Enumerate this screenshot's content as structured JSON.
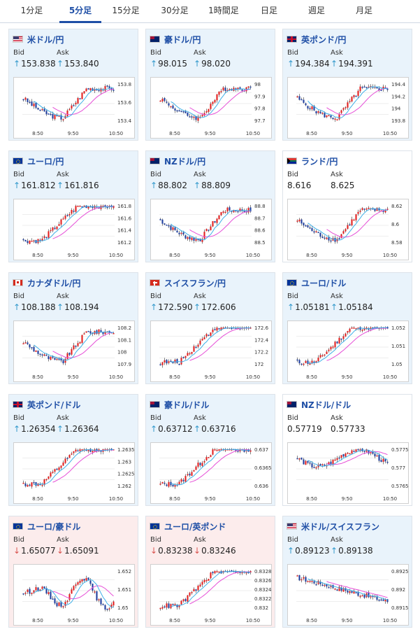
{
  "tabs": [
    "1分足",
    "5分足",
    "15分足",
    "30分足",
    "1時間足",
    "日足",
    "週足",
    "月足"
  ],
  "active_tab": 1,
  "labels": {
    "bid": "Bid",
    "ask": "Ask"
  },
  "colors": {
    "up_bg": "#e9f3fb",
    "down_bg": "#fcecec",
    "title": "#1f4fa6",
    "up_candle": "#e32020",
    "down_candle": "#1f3fa0",
    "ma_long": "#e64fd7",
    "ma_short": "#3fb0e8"
  },
  "time_labels": [
    "8:50",
    "9:50",
    "10:50"
  ],
  "cards": [
    {
      "pair": "米ドル/円",
      "flag": "us-jp",
      "direction": "up",
      "bid": "153.838",
      "ask": "153.840",
      "yticks": [
        "153.8",
        "153.6",
        "153.4"
      ],
      "trend": "upshape"
    },
    {
      "pair": "豪ドル/円",
      "flag": "au-jp",
      "direction": "up",
      "bid": "98.015",
      "ask": "98.020",
      "yticks": [
        "98",
        "97.9",
        "97.8",
        "97.7"
      ],
      "trend": "upshape"
    },
    {
      "pair": "英ポンド/円",
      "flag": "gb-jp",
      "direction": "up",
      "bid": "194.384",
      "ask": "194.391",
      "yticks": [
        "194.4",
        "194.2",
        "194",
        "193.8"
      ],
      "trend": "upshape"
    },
    {
      "pair": "ユーロ/円",
      "flag": "eu-jp",
      "direction": "up",
      "bid": "161.812",
      "ask": "161.816",
      "yticks": [
        "161.8",
        "161.6",
        "161.4",
        "161.2"
      ],
      "trend": "rise"
    },
    {
      "pair": "NZドル/円",
      "flag": "nz-jp",
      "direction": "up",
      "bid": "88.802",
      "ask": "88.809",
      "yticks": [
        "88.8",
        "88.7",
        "88.6",
        "88.5"
      ],
      "trend": "upshape"
    },
    {
      "pair": "ランド/円",
      "flag": "za-jp",
      "direction": "none",
      "bid": "8.616",
      "ask": "8.625",
      "yticks": [
        "8.62",
        "8.6",
        "8.58"
      ],
      "trend": "upshape"
    },
    {
      "pair": "カナダドル/円",
      "flag": "ca-jp",
      "direction": "up",
      "bid": "108.188",
      "ask": "108.194",
      "yticks": [
        "108.2",
        "108.1",
        "108",
        "107.9"
      ],
      "trend": "upshape"
    },
    {
      "pair": "スイスフラン/円",
      "flag": "ch-jp",
      "direction": "up",
      "bid": "172.590",
      "ask": "172.606",
      "yticks": [
        "172.6",
        "172.4",
        "172.2",
        "172"
      ],
      "trend": "rise"
    },
    {
      "pair": "ユーロ/ドル",
      "flag": "eu-us",
      "direction": "up",
      "bid": "1.05181",
      "ask": "1.05184",
      "yticks": [
        "1.052",
        "1.051",
        "1.05"
      ],
      "trend": "rise"
    },
    {
      "pair": "英ポンド/ドル",
      "flag": "gb-us",
      "direction": "up",
      "bid": "1.26354",
      "ask": "1.26364",
      "yticks": [
        "1.2635",
        "1.263",
        "1.2625",
        "1.262"
      ],
      "trend": "rise"
    },
    {
      "pair": "豪ドル/ドル",
      "flag": "au-us",
      "direction": "up",
      "bid": "0.63712",
      "ask": "0.63716",
      "yticks": [
        "0.637",
        "0.6365",
        "0.636"
      ],
      "trend": "rise"
    },
    {
      "pair": "NZドル/ドル",
      "flag": "nz-us",
      "direction": "none",
      "bid": "0.57719",
      "ask": "0.57733",
      "yticks": [
        "0.5775",
        "0.577",
        "0.5765"
      ],
      "trend": "highflat"
    },
    {
      "pair": "ユーロ/豪ドル",
      "flag": "eu-au",
      "direction": "down",
      "bid": "1.65077",
      "ask": "1.65091",
      "yticks": [
        "1.652",
        "1.651",
        "1.65"
      ],
      "trend": "zig"
    },
    {
      "pair": "ユーロ/英ポンド",
      "flag": "eu-gb",
      "direction": "down",
      "bid": "0.83238",
      "ask": "0.83246",
      "yticks": [
        "0.8328",
        "0.8326",
        "0.8324",
        "0.8322",
        "0.832"
      ],
      "trend": "rise"
    },
    {
      "pair": "米ドル/スイスフラン",
      "flag": "us-ch",
      "direction": "up",
      "bid": "0.89123",
      "ask": "0.89138",
      "yticks": [
        "0.8925",
        "0.892",
        "0.8915"
      ],
      "trend": "fall"
    }
  ]
}
